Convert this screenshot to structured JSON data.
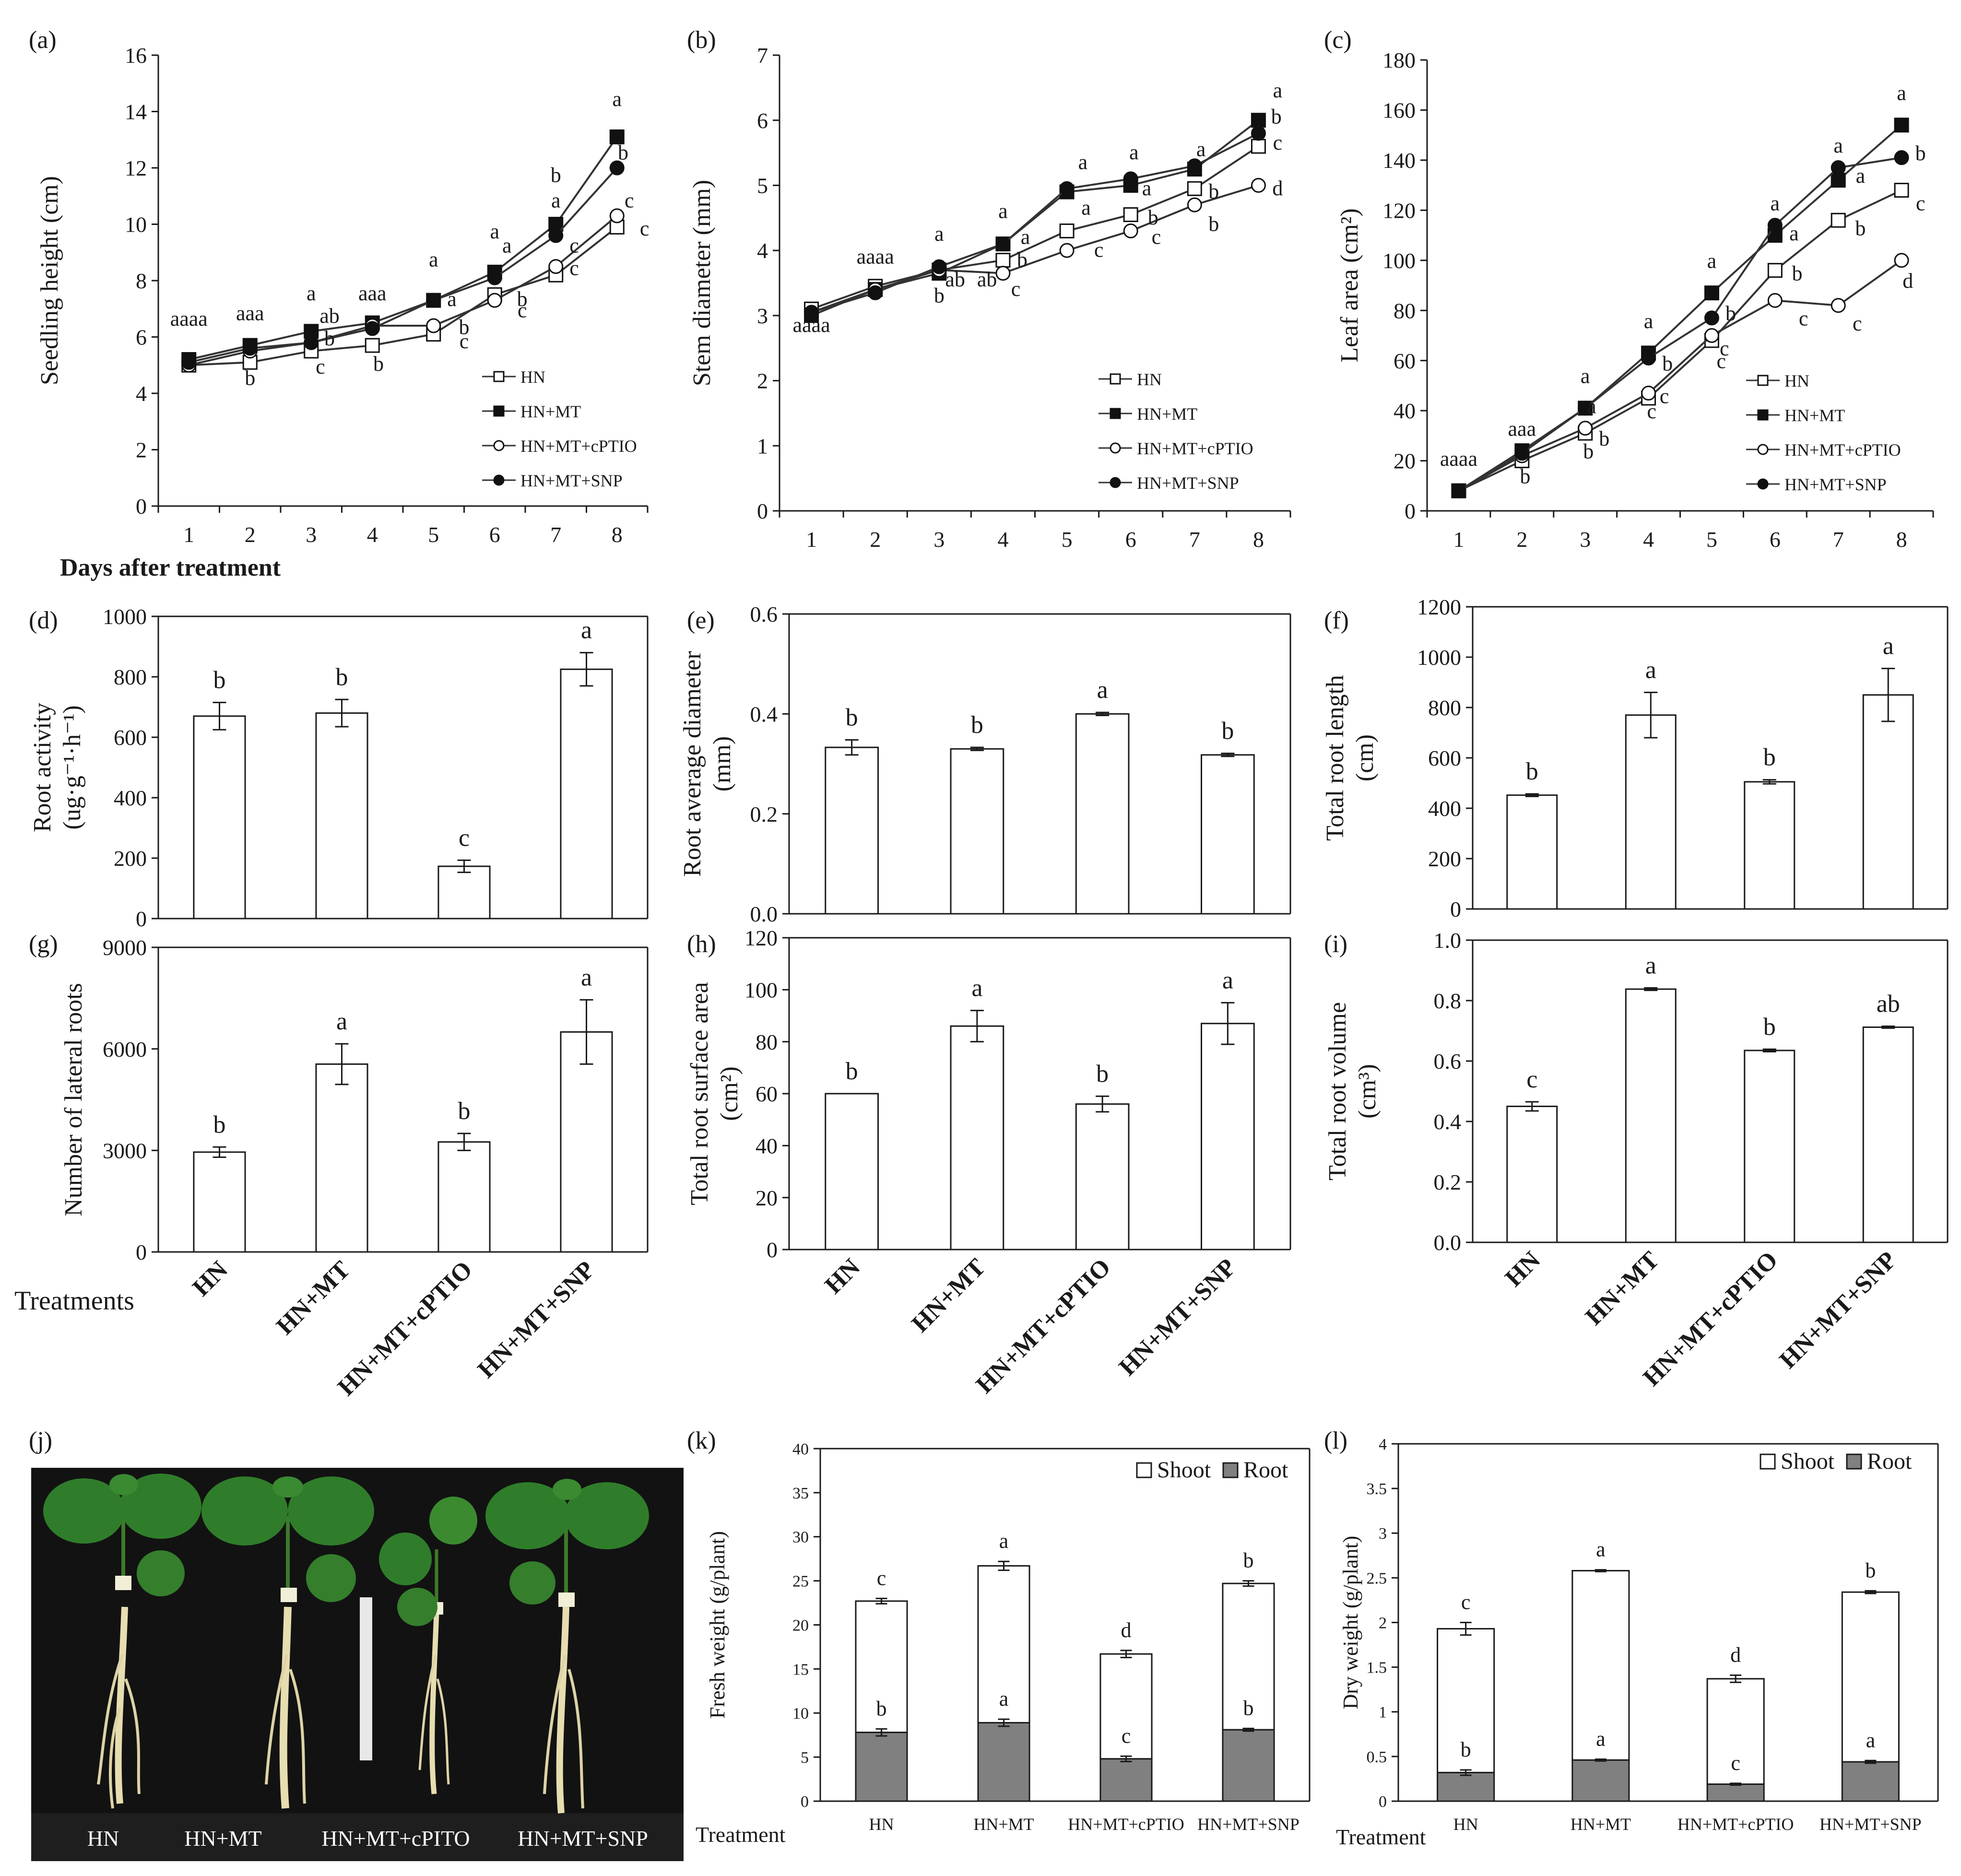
{
  "figure": {
    "shared_x_label": "Days after treatment",
    "shared_treatment_label_top": "Treatments",
    "shared_treatment_label_bottom": "Treatment",
    "photo_labels": [
      "HN",
      "HN+MT",
      "HN+MT+cPITO",
      "HN+MT+SNP"
    ]
  },
  "chart_data": [
    {
      "panel": "(a)",
      "type": "line",
      "title": "",
      "xlabel": "Days after treatment",
      "ylabel": "Seedling height (cm)",
      "x": [
        1,
        2,
        3,
        4,
        5,
        6,
        7,
        8
      ],
      "ylim": [
        0,
        16
      ],
      "yticks": [
        0,
        2,
        4,
        6,
        8,
        10,
        12,
        14,
        16
      ],
      "ytick_labels": [
        "0",
        "2",
        "4",
        "6",
        "8",
        "10",
        "12",
        "14",
        "16"
      ],
      "series": [
        {
          "name": "HN",
          "marker": "open-square",
          "values": [
            5.0,
            5.1,
            5.5,
            5.7,
            6.1,
            7.5,
            8.2,
            9.9
          ]
        },
        {
          "name": "HN+MT",
          "marker": "filled-square",
          "values": [
            5.2,
            5.7,
            6.2,
            6.5,
            7.3,
            8.3,
            10.0,
            13.1
          ]
        },
        {
          "name": "HN+MT+cPTIO",
          "marker": "open-circle",
          "values": [
            5.0,
            5.5,
            5.8,
            6.4,
            6.4,
            7.3,
            8.5,
            10.3
          ]
        },
        {
          "name": "HN+MT+SNP",
          "marker": "filled-circle",
          "values": [
            5.1,
            5.6,
            5.8,
            6.3,
            7.3,
            8.1,
            9.6,
            12.0
          ]
        }
      ],
      "annotations": [
        {
          "text": "aaaa",
          "x": 1,
          "y": 6.4
        },
        {
          "text": "aaa",
          "x": 2,
          "y": 6.6
        },
        {
          "text": "b",
          "x": 2,
          "y": 4.3
        },
        {
          "text": "a",
          "x": 3,
          "y": 7.3
        },
        {
          "text": "ab",
          "x": 3.3,
          "y": 6.5
        },
        {
          "text": "b",
          "x": 3.3,
          "y": 5.7
        },
        {
          "text": "c",
          "x": 3.15,
          "y": 4.7
        },
        {
          "text": "aaa",
          "x": 4,
          "y": 7.3
        },
        {
          "text": "b",
          "x": 4.1,
          "y": 4.8
        },
        {
          "text": "a",
          "x": 5,
          "y": 8.5
        },
        {
          "text": "a",
          "x": 5.3,
          "y": 7.1
        },
        {
          "text": "b",
          "x": 5.5,
          "y": 6.1
        },
        {
          "text": "c",
          "x": 5.5,
          "y": 5.6
        },
        {
          "text": "a",
          "x": 6,
          "y": 9.5
        },
        {
          "text": "a",
          "x": 6.2,
          "y": 9.0
        },
        {
          "text": "b",
          "x": 6.45,
          "y": 7.1
        },
        {
          "text": "c",
          "x": 6.45,
          "y": 6.7
        },
        {
          "text": "b",
          "x": 7,
          "y": 11.5
        },
        {
          "text": "a",
          "x": 7,
          "y": 10.6
        },
        {
          "text": "c",
          "x": 7.3,
          "y": 9.0
        },
        {
          "text": "c",
          "x": 7.3,
          "y": 8.2
        },
        {
          "text": "a",
          "x": 8,
          "y": 14.2
        },
        {
          "text": "b",
          "x": 8.1,
          "y": 12.3
        },
        {
          "text": "c",
          "x": 8.2,
          "y": 10.6
        },
        {
          "text": "c",
          "x": 8.45,
          "y": 9.6
        }
      ],
      "legend": "bottom-right"
    },
    {
      "panel": "(b)",
      "type": "line",
      "title": "",
      "xlabel": "",
      "ylabel": "Stem diameter (mm)",
      "x": [
        1,
        2,
        3,
        4,
        5,
        6,
        7,
        8
      ],
      "ylim": [
        0,
        7
      ],
      "yticks": [
        0,
        1,
        2,
        3,
        4,
        5,
        6,
        7
      ],
      "ytick_labels": [
        "0",
        "1",
        "2",
        "3",
        "4",
        "5",
        "6",
        "7"
      ],
      "series": [
        {
          "name": "HN",
          "marker": "open-square",
          "values": [
            3.1,
            3.45,
            3.7,
            3.85,
            4.3,
            4.55,
            4.95,
            5.6
          ]
        },
        {
          "name": "HN+MT",
          "marker": "filled-square",
          "values": [
            3.0,
            3.4,
            3.65,
            4.1,
            4.9,
            5.0,
            5.25,
            6.0
          ]
        },
        {
          "name": "HN+MT+cPTIO",
          "marker": "open-circle",
          "values": [
            3.05,
            3.4,
            3.7,
            3.65,
            4.0,
            4.3,
            4.7,
            5.0
          ]
        },
        {
          "name": "HN+MT+SNP",
          "marker": "filled-circle",
          "values": [
            3.05,
            3.35,
            3.75,
            4.1,
            4.95,
            5.1,
            5.3,
            5.8
          ]
        }
      ],
      "annotations": [
        {
          "text": "aaaa",
          "x": 1,
          "y": 2.75
        },
        {
          "text": "aaaa",
          "x": 2,
          "y": 3.8
        },
        {
          "text": "a",
          "x": 3,
          "y": 4.15
        },
        {
          "text": "ab",
          "x": 3.25,
          "y": 3.45
        },
        {
          "text": "ab",
          "x": 3.75,
          "y": 3.45
        },
        {
          "text": "b",
          "x": 3.0,
          "y": 3.2
        },
        {
          "text": "a",
          "x": 4,
          "y": 4.5
        },
        {
          "text": "a",
          "x": 4.35,
          "y": 4.1
        },
        {
          "text": "b",
          "x": 4.3,
          "y": 3.75
        },
        {
          "text": "c",
          "x": 4.2,
          "y": 3.3
        },
        {
          "text": "a",
          "x": 5.25,
          "y": 5.25
        },
        {
          "text": "a",
          "x": 5.3,
          "y": 4.55
        },
        {
          "text": "c",
          "x": 5.5,
          "y": 3.9
        },
        {
          "text": "a",
          "x": 6.05,
          "y": 5.4
        },
        {
          "text": "a",
          "x": 6.25,
          "y": 4.85
        },
        {
          "text": "b",
          "x": 6.35,
          "y": 4.4
        },
        {
          "text": "c",
          "x": 6.4,
          "y": 4.1
        },
        {
          "text": "a",
          "x": 7.1,
          "y": 5.45
        },
        {
          "text": "b",
          "x": 7.3,
          "y": 4.8
        },
        {
          "text": "b",
          "x": 7.3,
          "y": 4.3
        },
        {
          "text": "a",
          "x": 8.3,
          "y": 6.35
        },
        {
          "text": "b",
          "x": 8.28,
          "y": 5.95
        },
        {
          "text": "c",
          "x": 8.3,
          "y": 5.55
        },
        {
          "text": "d",
          "x": 8.3,
          "y": 4.85
        }
      ],
      "legend": "bottom-right"
    },
    {
      "panel": "(c)",
      "type": "line",
      "title": "",
      "xlabel": "",
      "ylabel": "Leaf area (cm²)",
      "x": [
        1,
        2,
        3,
        4,
        5,
        6,
        7,
        8
      ],
      "ylim": [
        0,
        180
      ],
      "yticks": [
        0,
        20,
        40,
        60,
        80,
        100,
        120,
        140,
        160,
        180
      ],
      "ytick_labels": [
        "0",
        "20",
        "40",
        "60",
        "80",
        "100",
        "120",
        "140",
        "160",
        "180"
      ],
      "series": [
        {
          "name": "HN",
          "marker": "open-square",
          "values": [
            8,
            20,
            31,
            45,
            68,
            96,
            116,
            128
          ]
        },
        {
          "name": "HN+MT",
          "marker": "filled-square",
          "values": [
            8,
            24,
            41,
            63,
            87,
            110,
            132,
            154
          ]
        },
        {
          "name": "HN+MT+cPTIO",
          "marker": "open-circle",
          "values": [
            8,
            22,
            33,
            47,
            70,
            84,
            82,
            100
          ]
        },
        {
          "name": "HN+MT+SNP",
          "marker": "filled-circle",
          "values": [
            8,
            23,
            41,
            61,
            77,
            114,
            137,
            141
          ]
        }
      ],
      "annotations": [
        {
          "text": "aaaa",
          "x": 1,
          "y": 18
        },
        {
          "text": "aaa",
          "x": 2,
          "y": 30
        },
        {
          "text": "b",
          "x": 2.05,
          "y": 11
        },
        {
          "text": "a",
          "x": 3,
          "y": 51
        },
        {
          "text": "a",
          "x": 3.1,
          "y": 39
        },
        {
          "text": "b",
          "x": 3.3,
          "y": 26
        },
        {
          "text": "b",
          "x": 3.05,
          "y": 21
        },
        {
          "text": "a",
          "x": 4,
          "y": 73
        },
        {
          "text": "b",
          "x": 4.3,
          "y": 56
        },
        {
          "text": "c",
          "x": 4.25,
          "y": 43
        },
        {
          "text": "c",
          "x": 4.05,
          "y": 37
        },
        {
          "text": "a",
          "x": 5,
          "y": 97
        },
        {
          "text": "b",
          "x": 5.3,
          "y": 76
        },
        {
          "text": "c",
          "x": 5.2,
          "y": 62
        },
        {
          "text": "c",
          "x": 5.15,
          "y": 57
        },
        {
          "text": "a",
          "x": 6,
          "y": 120
        },
        {
          "text": "a",
          "x": 6.3,
          "y": 108
        },
        {
          "text": "b",
          "x": 6.35,
          "y": 92
        },
        {
          "text": "c",
          "x": 6.45,
          "y": 74
        },
        {
          "text": "a",
          "x": 7,
          "y": 143
        },
        {
          "text": "a",
          "x": 7.35,
          "y": 131
        },
        {
          "text": "b",
          "x": 7.35,
          "y": 110
        },
        {
          "text": "c",
          "x": 7.3,
          "y": 72
        },
        {
          "text": "a",
          "x": 8,
          "y": 164
        },
        {
          "text": "b",
          "x": 8.3,
          "y": 140
        },
        {
          "text": "c",
          "x": 8.3,
          "y": 120
        },
        {
          "text": "d",
          "x": 8.1,
          "y": 89
        }
      ],
      "legend": "bottom-right"
    },
    {
      "panel": "(d)",
      "type": "bar",
      "ylabel": "Root activity",
      "ylabel2": "(ug·g⁻¹·h⁻¹)",
      "categories": [
        "HN",
        "HN+MT",
        "HN+MT+cPTIO",
        "HN+MT+SNP"
      ],
      "values": [
        670,
        680,
        173,
        825
      ],
      "errors": [
        45,
        45,
        20,
        55
      ],
      "letters": [
        "b",
        "b",
        "c",
        "a"
      ],
      "ylim": [
        0,
        1000
      ],
      "yticks": [
        0,
        200,
        400,
        600,
        800,
        1000
      ],
      "ytick_labels": [
        "0",
        "200",
        "400",
        "600",
        "800",
        "1000"
      ]
    },
    {
      "panel": "(e)",
      "type": "bar",
      "ylabel": "Root average diameter",
      "ylabel2": "(mm)",
      "categories": [
        "HN",
        "HN+MT",
        "HN+MT+cPTIO",
        "HN+MT+SNP"
      ],
      "values": [
        0.333,
        0.33,
        0.4,
        0.318
      ],
      "errors": [
        0.015,
        0.003,
        0.003,
        0.003
      ],
      "letters": [
        "b",
        "b",
        "a",
        "b"
      ],
      "ylim": [
        0,
        0.6
      ],
      "yticks": [
        0,
        0.2,
        0.4,
        0.6
      ],
      "ytick_labels": [
        "0.0",
        "0.2",
        "0.4",
        "0.6"
      ]
    },
    {
      "panel": "(f)",
      "type": "bar",
      "ylabel": "Total root length",
      "ylabel2": "(cm)",
      "categories": [
        "HN",
        "HN+MT",
        "HN+MT+cPTIO",
        "HN+MT+SNP"
      ],
      "values": [
        452,
        770,
        505,
        850
      ],
      "errors": [
        5,
        90,
        8,
        105
      ],
      "letters": [
        "b",
        "a",
        "b",
        "a"
      ],
      "ylim": [
        0,
        1200
      ],
      "yticks": [
        0,
        200,
        400,
        600,
        800,
        1000,
        1200
      ],
      "ytick_labels": [
        "0",
        "200",
        "400",
        "600",
        "800",
        "1000",
        "1200"
      ]
    },
    {
      "panel": "(g)",
      "type": "bar",
      "ylabel": "Number of lateral roots",
      "ylabel2": "",
      "categories": [
        "HN",
        "HN+MT",
        "HN+MT+cPTIO",
        "HN+MT+SNP"
      ],
      "values": [
        2950,
        5550,
        3250,
        6500
      ],
      "errors": [
        150,
        600,
        250,
        950
      ],
      "letters": [
        "b",
        "a",
        "b",
        "a"
      ],
      "ylim": [
        0,
        9000
      ],
      "yticks": [
        0,
        3000,
        6000,
        9000
      ],
      "ytick_labels": [
        "0",
        "3000",
        "6000",
        "9000"
      ]
    },
    {
      "panel": "(h)",
      "type": "bar",
      "ylabel": "Total root surface area",
      "ylabel2": "(cm²)",
      "categories": [
        "HN",
        "HN+MT",
        "HN+MT+cPTIO",
        "HN+MT+SNP"
      ],
      "values": [
        60,
        86,
        56,
        87
      ],
      "errors": [
        0,
        6,
        3,
        8
      ],
      "letters": [
        "b",
        "a",
        "b",
        "a"
      ],
      "ylim": [
        0,
        120
      ],
      "yticks": [
        0,
        20,
        40,
        60,
        80,
        100,
        120
      ],
      "ytick_labels": [
        "0",
        "20",
        "40",
        "60",
        "80",
        "100",
        "120"
      ]
    },
    {
      "panel": "(i)",
      "type": "bar",
      "ylabel": "Total root volume",
      "ylabel2": "(cm³)",
      "categories": [
        "HN",
        "HN+MT",
        "HN+MT+cPTIO",
        "HN+MT+SNP"
      ],
      "values": [
        0.45,
        0.838,
        0.635,
        0.712
      ],
      "errors": [
        0.015,
        0.004,
        0.004,
        0.003
      ],
      "letters": [
        "c",
        "a",
        "b",
        "ab"
      ],
      "ylim": [
        0,
        1.0
      ],
      "yticks": [
        0,
        0.2,
        0.4,
        0.6,
        0.8,
        1.0
      ],
      "ytick_labels": [
        "0.0",
        "0.2",
        "0.4",
        "0.6",
        "0.8",
        "1.0"
      ]
    },
    {
      "panel": "(k)",
      "type": "stacked-bar",
      "ylabel": "Fresh weight  (g/plant)",
      "xlabel": "Treatment",
      "categories": [
        "HN",
        "HN+MT",
        "HN+MT+cPTIO",
        "HN+MT+SNP"
      ],
      "series": [
        {
          "name": "Root",
          "color": "#808080",
          "values": [
            7.8,
            8.9,
            4.8,
            8.1
          ],
          "errors": [
            0.4,
            0.4,
            0.3,
            0.15
          ],
          "letters": [
            "b",
            "a",
            "c",
            "b"
          ]
        },
        {
          "name": "Shoot",
          "color": "#ffffff",
          "values": [
            14.9,
            17.8,
            11.9,
            16.6
          ],
          "errors": [
            0.3,
            0.5,
            0.4,
            0.3
          ],
          "letters": [
            "c",
            "a",
            "d",
            "b"
          ]
        }
      ],
      "totals": [
        22.7,
        26.7,
        16.7,
        24.7
      ],
      "ylim": [
        0,
        40
      ],
      "yticks": [
        0,
        5,
        10,
        15,
        20,
        25,
        30,
        35,
        40
      ],
      "ytick_labels": [
        "0",
        "5",
        "10",
        "15",
        "20",
        "25",
        "30",
        "35",
        "40"
      ],
      "legend": "top-right"
    },
    {
      "panel": "(l)",
      "type": "stacked-bar",
      "ylabel": "Dry weight  (g/plant)",
      "xlabel": "Treatment",
      "categories": [
        "HN",
        "HN+MT",
        "HN+MT+cPTIO",
        "HN+MT+SNP"
      ],
      "series": [
        {
          "name": "Root",
          "color": "#808080",
          "values": [
            0.32,
            0.46,
            0.19,
            0.44
          ],
          "errors": [
            0.03,
            0.01,
            0.01,
            0.015
          ],
          "letters": [
            "b",
            "a",
            "c",
            "a"
          ]
        },
        {
          "name": "Shoot",
          "color": "#ffffff",
          "values": [
            1.61,
            2.12,
            1.18,
            1.9
          ],
          "errors": [
            0.07,
            0.01,
            0.04,
            0.015
          ],
          "letters": [
            "c",
            "a",
            "d",
            "b"
          ]
        }
      ],
      "totals": [
        1.93,
        2.58,
        1.37,
        2.34
      ],
      "ylim": [
        0,
        4
      ],
      "yticks": [
        0,
        0.5,
        1,
        1.5,
        2,
        2.5,
        3,
        3.5,
        4
      ],
      "ytick_labels": [
        "0",
        "0.5",
        "1",
        "1.5",
        "2",
        "2.5",
        "3",
        "3.5",
        "4"
      ],
      "legend": "top-right"
    }
  ]
}
